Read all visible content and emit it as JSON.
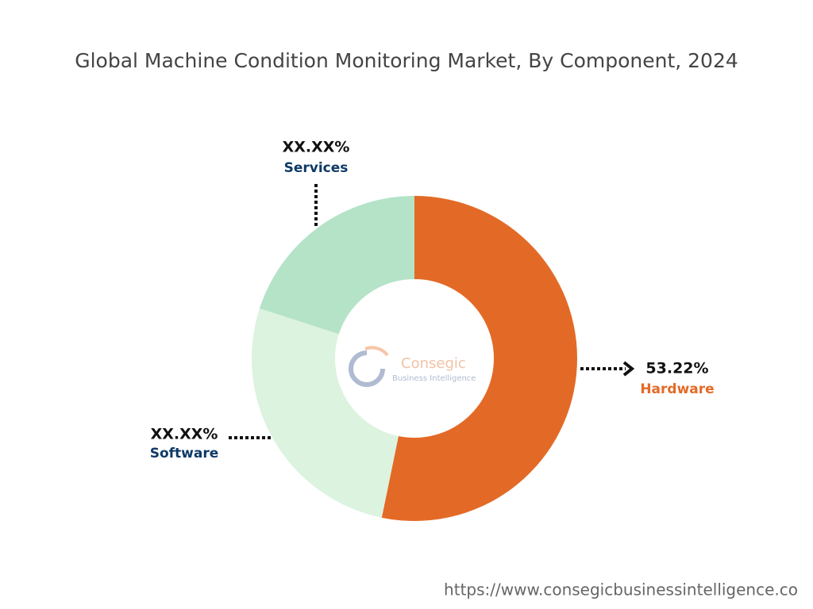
{
  "chart_data": {
    "type": "donut",
    "title": "Global Machine Condition Monitoring Market, By Component, 2024",
    "categories": [
      "Hardware",
      "Software",
      "Services"
    ],
    "values": [
      53.22,
      26.75,
      20.03
    ],
    "value_labels": [
      "53.22%",
      "XX.XX%",
      "XX.XX%"
    ],
    "colors": [
      "#e36a26",
      "#dcf3df",
      "#b5e3c8"
    ],
    "label_colors": [
      "#e36a26",
      "#0e3a66",
      "#0e3a66"
    ]
  },
  "watermark": {
    "name": "Consegic",
    "tagline": "Business Intelligence"
  },
  "source_url": "https://www.consegicbusinessintelligence.co"
}
